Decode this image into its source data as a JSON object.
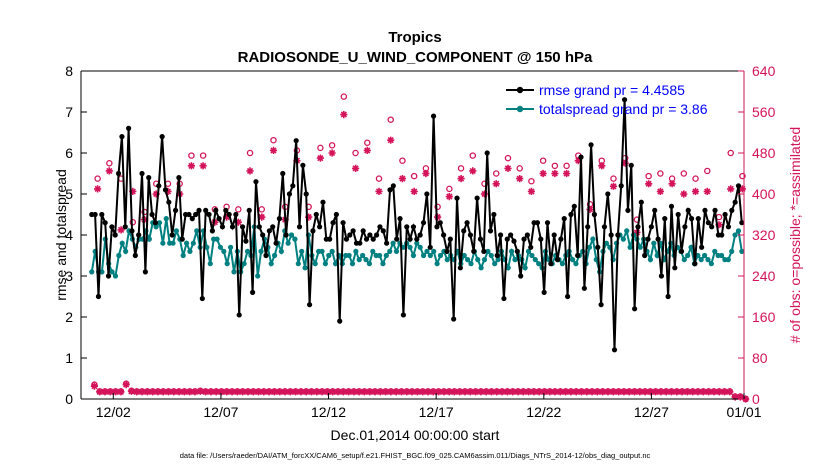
{
  "chart_data": {
    "type": "line",
    "title": "Tropics",
    "subtitle": "RADIOSONDE_U_WIND_COMPONENT @ 150 hPa",
    "xlabel": "Dec.01,2014 00:00:00 start",
    "ylabel": "rmse and totalspread",
    "y2label": "# of obs: o=possible; *=assimilated",
    "xlim": [
      0.5,
      31.3
    ],
    "ylim": [
      0,
      8
    ],
    "y2lim": [
      0,
      640
    ],
    "x_ticks": [
      {
        "label": "12/02",
        "value": 2
      },
      {
        "label": "12/07",
        "value": 7
      },
      {
        "label": "12/12",
        "value": 12
      },
      {
        "label": "12/17",
        "value": 17
      },
      {
        "label": "12/22",
        "value": 22
      },
      {
        "label": "12/27",
        "value": 27
      },
      {
        "label": "01/01",
        "value": 32
      }
    ],
    "y_ticks": [
      "0",
      "1",
      "2",
      "3",
      "4",
      "5",
      "6",
      "7",
      "8"
    ],
    "y2_ticks": [
      "0",
      "80",
      "160",
      "240",
      "320",
      "400",
      "480",
      "560",
      "640"
    ],
    "legend": [
      "rmse grand pr = 4.4585",
      "totalspread grand pr = 3.86"
    ],
    "footer": "data file: /Users/raeder/DAI/ATM_forcXX/CAM6_setup/f.e21.FHIST_BGC.f09_025.CAM6assim.011/Diags_NTrS_2014-12/obs_diag_output.nc",
    "series": [
      {
        "name": "rmse",
        "color": "#000000",
        "marker": "star",
        "values": [
          4.5,
          4.5,
          2.5,
          4.5,
          4.3,
          3.0,
          4.2,
          4.0,
          5.5,
          6.4,
          4.2,
          6.6,
          4.1,
          3.5,
          4.0,
          5.5,
          3.1,
          5.4,
          4.5,
          4.3,
          5.2,
          6.4,
          5.1,
          4.8,
          4.0,
          4.6,
          5.4,
          3.9,
          4.5,
          4.5,
          4.4,
          4.5,
          4.6,
          2.45,
          4.6,
          4.5,
          4.1,
          4.6,
          4.4,
          4.2,
          4.6,
          4.5,
          4.2,
          4.5,
          2.05,
          4.2,
          3.85,
          4.6,
          2.6,
          5.3,
          4.2,
          4.0,
          3.5,
          4.1,
          4.2,
          3.8,
          4.4,
          5.5,
          4.0,
          5.0,
          5.2,
          6.3,
          4.2,
          5.7,
          5.0,
          2.3,
          4.1,
          4.5,
          4.2,
          4.8,
          3.9,
          3.9,
          4.3,
          4.5,
          1.9,
          4.3,
          3.9,
          4.0,
          4.1,
          3.8,
          3.8,
          4.1,
          3.9,
          4.0,
          3.9,
          4.0,
          4.2,
          4.1,
          3.8,
          5.1,
          5.2,
          3.9,
          4.4,
          2.05,
          4.2,
          3.9,
          4.2,
          3.9,
          4.0,
          4.3,
          5.0,
          3.7,
          6.9,
          4.2,
          4.3,
          4.0,
          3.6,
          3.9,
          1.95,
          4.9,
          3.2,
          4.1,
          4.3,
          4.0,
          3.6,
          4.9,
          3.9,
          3.6,
          6.0,
          4.1,
          4.5,
          3.5,
          4.0,
          2.45,
          3.9,
          4.0,
          3.85,
          3.6,
          3.0,
          3.9,
          4.0,
          3.7,
          4.3,
          4.3,
          3.9,
          2.6,
          4.3,
          3.3,
          4.0,
          3.4,
          3.9,
          4.4,
          2.5,
          4.5,
          4.7,
          3.5,
          5.9,
          2.7,
          4.2,
          6.2,
          4.5,
          3.7,
          2.3,
          4.2,
          5.0,
          4.0,
          1.2,
          4.0,
          5.2,
          7.3,
          4.6,
          5.7,
          2.2,
          4.2,
          4.8,
          3.5,
          3.9,
          4.2,
          4.6,
          3.9,
          3.0,
          4.4,
          2.5,
          4.7,
          3.2,
          4.5,
          3.6,
          4.2,
          4.6,
          4.4,
          3.3,
          4.4,
          3.7,
          4.6,
          4.3,
          4.2,
          4.6,
          4.0,
          4.0,
          4.5,
          4.2,
          4.6,
          4.8,
          5.2,
          4.3
        ]
      },
      {
        "name": "totalspread",
        "color": "#008080",
        "marker": "circle",
        "values": [
          3.1,
          3.6,
          3.1,
          3.1,
          3.9,
          3.3,
          3.1,
          3.0,
          3.5,
          3.8,
          3.6,
          4.1,
          3.9,
          3.7,
          3.9,
          3.9,
          4.1,
          3.9,
          4.3,
          4.2,
          4.3,
          3.8,
          4.4,
          3.8,
          3.8,
          4.1,
          3.9,
          3.5,
          3.8,
          3.6,
          3.8,
          4.1,
          3.7,
          4.1,
          3.7,
          3.3,
          3.9,
          3.9,
          3.7,
          3.6,
          3.3,
          3.7,
          3.1,
          3.6,
          3.1,
          3.3,
          3.6,
          3.5,
          4.2,
          3.0,
          3.6,
          3.9,
          3.7,
          3.3,
          3.5,
          3.8,
          3.6,
          4.1,
          3.8,
          4.0,
          3.9,
          3.3,
          3.6,
          3.2,
          4.0,
          3.5,
          3.3,
          3.6,
          3.6,
          3.3,
          3.5,
          3.6,
          3.3,
          3.5,
          3.3,
          3.5,
          3.5,
          3.3,
          3.6,
          3.4,
          3.5,
          3.4,
          3.3,
          3.6,
          3.5,
          3.5,
          3.3,
          3.5,
          3.6,
          3.8,
          3.6,
          3.8,
          3.7,
          3.8,
          3.7,
          3.5,
          3.8,
          3.7,
          3.5,
          3.6,
          3.5,
          3.6,
          3.3,
          3.5,
          3.6,
          3.4,
          3.5,
          3.4,
          3.6,
          3.3,
          3.5,
          3.4,
          3.3,
          3.6,
          3.4,
          3.2,
          3.4,
          3.6,
          3.5,
          3.3,
          3.4,
          3.6,
          3.4,
          3.2,
          3.6,
          3.4,
          3.5,
          3.4,
          3.2,
          3.6,
          3.5,
          3.4,
          3.3,
          3.2,
          3.6,
          3.4,
          3.3,
          3.5,
          3.4,
          3.3,
          3.5,
          3.6,
          3.4,
          3.3,
          3.5,
          3.6,
          3.3,
          3.7,
          3.9,
          3.4,
          3.1,
          3.6,
          3.8,
          3.7,
          3.4,
          3.8,
          4.0,
          3.9,
          4.1,
          3.7,
          4.0,
          3.9,
          3.7,
          3.9,
          3.6,
          3.4,
          3.8,
          3.5,
          3.8,
          3.4,
          3.6,
          3.8,
          3.5,
          3.7,
          3.6,
          3.4,
          3.5,
          3.7,
          3.3,
          3.5,
          3.4,
          3.5,
          3.4,
          3.3,
          3.6,
          3.5,
          3.5,
          3.4,
          3.4,
          3.6,
          4.0,
          4.1,
          3.6
        ]
      },
      {
        "name": "possible",
        "color": "#d4145a",
        "marker": "circle",
        "axis": "right",
        "values": [
          430,
          460,
          430,
          345,
          365,
          420,
          420,
          420,
          475,
          475,
          370,
          375,
          370,
          480,
          370,
          505,
          375,
          485,
          375,
          490,
          495,
          590,
          480,
          500,
          430,
          545,
          465,
          435,
          450,
          375,
          410,
          450,
          475,
          420,
          440,
          470,
          450,
          425,
          465,
          455,
          455,
          475,
          380,
          465,
          430,
          470,
          350,
          435,
          440,
          430,
          440,
          430,
          445,
          355,
          480,
          435
        ]
      },
      {
        "name": "assimilated",
        "color": "#d4145a",
        "marker": "star",
        "axis": "right",
        "values": [
          410,
          445,
          330,
          405,
          350,
          400,
          405,
          400,
          455,
          455,
          345,
          355,
          345,
          445,
          355,
          485,
          350,
          465,
          355,
          470,
          480,
          555,
          450,
          485,
          405,
          505,
          430,
          405,
          440,
          355,
          395,
          430,
          445,
          400,
          420,
          450,
          430,
          405,
          440,
          440,
          440,
          465,
          370,
          455,
          415,
          460,
          325,
          420,
          405,
          420,
          400,
          405,
          405,
          340,
          410,
          410
        ]
      },
      {
        "name": "possible_low",
        "color": "#d4145a",
        "marker": "circle",
        "axis": "right",
        "values": [
          28,
          15,
          15,
          15,
          15,
          15,
          30,
          16,
          15,
          15,
          15,
          15,
          15,
          15,
          15,
          15,
          15,
          15,
          15,
          15,
          16,
          15,
          15,
          15,
          15,
          15,
          15,
          15,
          15,
          15,
          15,
          15,
          15,
          15,
          15,
          15,
          15,
          15,
          15,
          15,
          15,
          15,
          15,
          15,
          15,
          15,
          15,
          15,
          15,
          15,
          15,
          15,
          15,
          15,
          15,
          15,
          15,
          15,
          15,
          15,
          15,
          15,
          15,
          15,
          15,
          15,
          15,
          15,
          15,
          15,
          15,
          15,
          15,
          15,
          15,
          15,
          15,
          15,
          15,
          15,
          15,
          15,
          15,
          15,
          15,
          15,
          15,
          15,
          15,
          15,
          15,
          15,
          15,
          15,
          15,
          15,
          15,
          15,
          15,
          15,
          15,
          15,
          15,
          15,
          15,
          15,
          15,
          15,
          15,
          15,
          15,
          15,
          15,
          15,
          15,
          15,
          15,
          15,
          15,
          15,
          15,
          5,
          5,
          0
        ]
      },
      {
        "name": "assimilated_low",
        "color": "#d4145a",
        "marker": "star",
        "axis": "right",
        "values": [
          25,
          14,
          14,
          14,
          14,
          14,
          28,
          15,
          14,
          14,
          14,
          14,
          14,
          14,
          14,
          14,
          14,
          14,
          14,
          14,
          15,
          14,
          14,
          14,
          14,
          14,
          14,
          14,
          14,
          14,
          14,
          14,
          14,
          14,
          14,
          14,
          14,
          14,
          14,
          14,
          14,
          14,
          14,
          14,
          14,
          14,
          14,
          14,
          14,
          14,
          14,
          14,
          14,
          14,
          14,
          14,
          14,
          14,
          14,
          14,
          14,
          14,
          14,
          14,
          14,
          14,
          14,
          14,
          14,
          14,
          14,
          14,
          14,
          14,
          14,
          14,
          14,
          14,
          14,
          14,
          14,
          14,
          14,
          14,
          14,
          14,
          14,
          14,
          14,
          14,
          14,
          14,
          14,
          14,
          14,
          14,
          14,
          14,
          14,
          14,
          14,
          14,
          14,
          14,
          14,
          14,
          14,
          14,
          14,
          14,
          14,
          14,
          14,
          14,
          14,
          14,
          14,
          14,
          14,
          14,
          14,
          4,
          4,
          0
        ]
      }
    ]
  }
}
